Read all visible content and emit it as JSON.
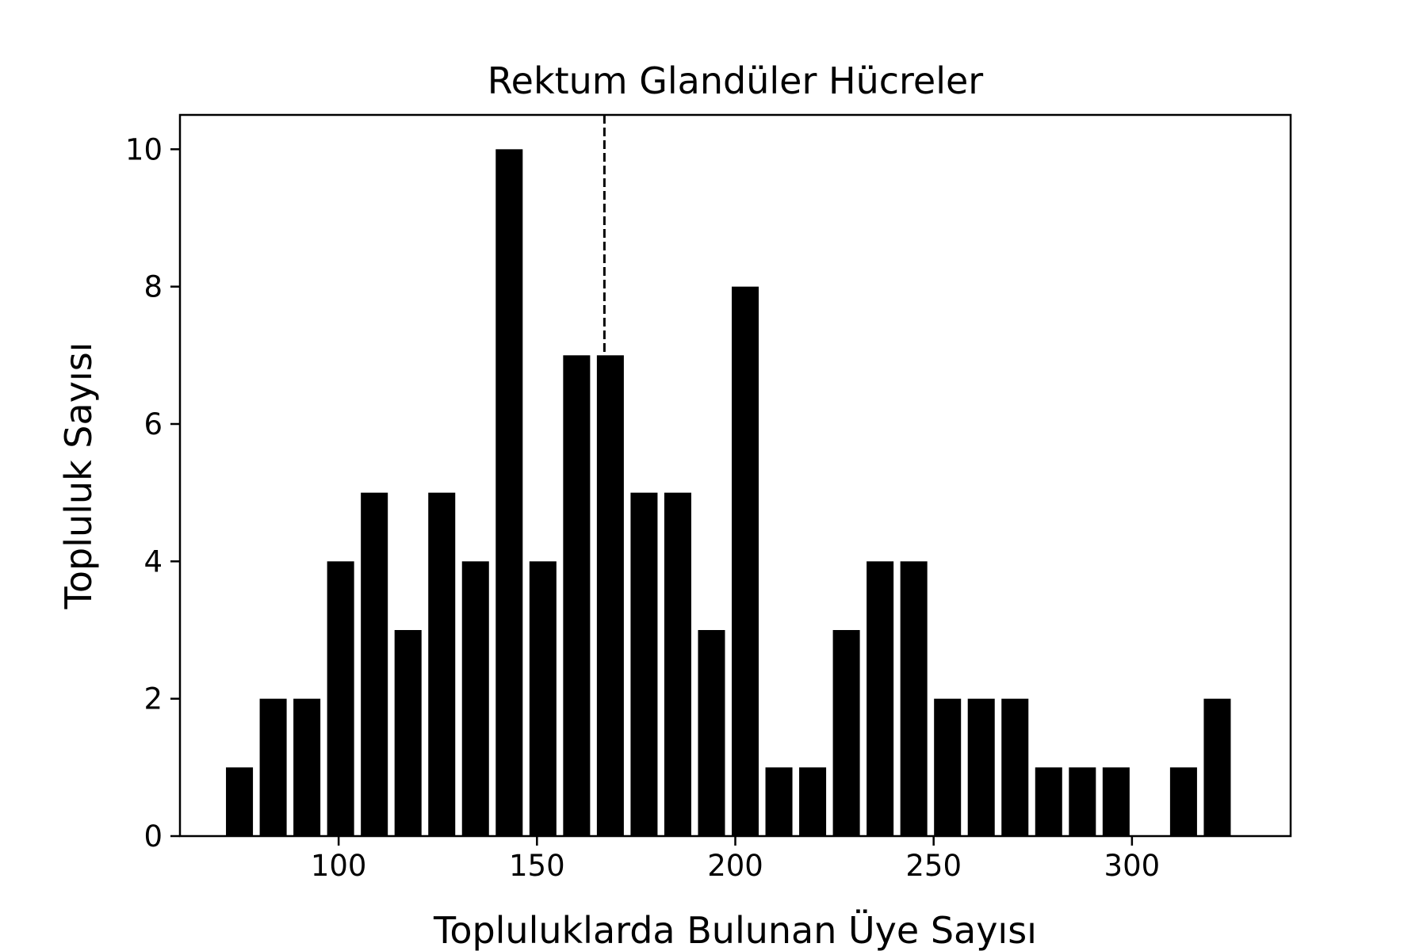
{
  "chart_data": {
    "type": "bar",
    "title": "Rektum Glandüler Hücreler",
    "xlabel": "Topluluklarda Bulunan Üye Sayısı",
    "ylabel": "Topluluk Sayısı",
    "x": [
      75,
      83.5,
      92,
      100.5,
      109,
      117.5,
      126,
      134.5,
      143,
      151.5,
      160,
      168.5,
      177,
      185.5,
      194,
      202.5,
      211,
      219.5,
      228,
      236.5,
      245,
      253.5,
      262,
      270.5,
      279,
      287.5,
      296,
      304.5,
      313,
      321.5
    ],
    "values": [
      1,
      2,
      2,
      4,
      5,
      3,
      5,
      4,
      10,
      4,
      7,
      7,
      5,
      5,
      3,
      8,
      1,
      1,
      3,
      4,
      4,
      2,
      2,
      2,
      1,
      1,
      1,
      0,
      1,
      2
    ],
    "bar_width": 6.8,
    "xlim": [
      60,
      340
    ],
    "ylim": [
      0,
      10.5
    ],
    "xticks": [
      100,
      150,
      200,
      250,
      300
    ],
    "yticks": [
      0,
      2,
      4,
      6,
      8,
      10
    ],
    "mean_line": 167,
    "bar_color": "#000000",
    "grid": false
  }
}
